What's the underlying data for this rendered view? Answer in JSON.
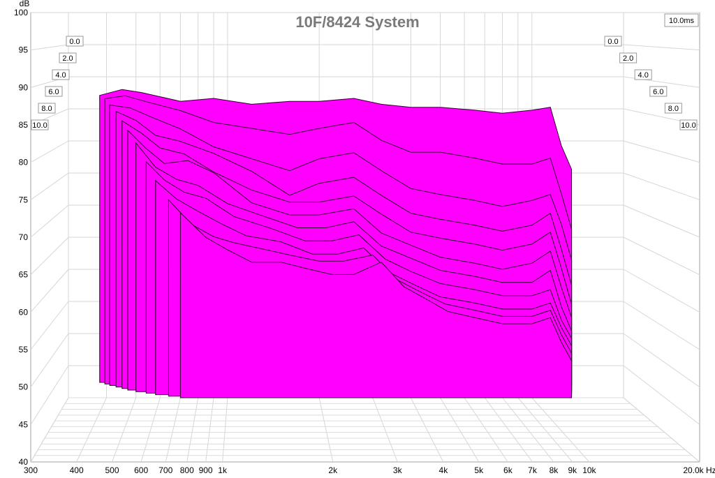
{
  "chart_data": {
    "type": "area",
    "subtype": "waterfall (cumulative spectral decay)",
    "title": "10F/8424 System",
    "ylabel": "dB",
    "xunit": "Hz",
    "time_window_label": "10.0ms",
    "x_scale": "log",
    "xlim": [
      300,
      20000
    ],
    "ylim": [
      40,
      100
    ],
    "y_ticks": [
      "100",
      "95",
      "90",
      "85",
      "80",
      "75",
      "70",
      "65",
      "60",
      "55",
      "50",
      "45",
      "40"
    ],
    "x_ticks": [
      {
        "value": 300,
        "label": "300"
      },
      {
        "value": 400,
        "label": "400"
      },
      {
        "value": 500,
        "label": "500"
      },
      {
        "value": 600,
        "label": "600"
      },
      {
        "value": 700,
        "label": "700"
      },
      {
        "value": 800,
        "label": "800"
      },
      {
        "value": 900,
        "label": "900"
      },
      {
        "value": 1000,
        "label": "1k"
      },
      {
        "value": 2000,
        "label": "2k"
      },
      {
        "value": 3000,
        "label": "3k"
      },
      {
        "value": 4000,
        "label": "4k"
      },
      {
        "value": 5000,
        "label": "5k"
      },
      {
        "value": 6000,
        "label": "6k"
      },
      {
        "value": 7000,
        "label": "7k"
      },
      {
        "value": 8000,
        "label": "8k"
      },
      {
        "value": 9000,
        "label": "9k"
      },
      {
        "value": 10000,
        "label": "10k"
      },
      {
        "value": 20000,
        "label": "20.0k Hz"
      }
    ],
    "time_labels": [
      "0.0",
      "2.0",
      "4.0",
      "6.0",
      "8.0",
      "10.0"
    ],
    "fill_color": "#ff00ff",
    "edge_color": "#300030",
    "grid": true,
    "series": [
      {
        "time_ms": 0.0,
        "x": [
          380,
          450,
          520,
          700,
          900,
          1200,
          1600,
          2000,
          2600,
          3200,
          4000,
          5000,
          6500,
          8000,
          10000,
          11500,
          12500,
          13500
        ],
        "values": [
          88.5,
          89.5,
          89,
          87.5,
          88,
          87,
          87.5,
          87.5,
          88,
          87,
          86.5,
          86.5,
          86,
          85.5,
          86,
          86.5,
          80,
          76
        ]
      },
      {
        "time_ms": 1.0,
        "x": [
          395,
          460,
          540,
          700,
          900,
          1200,
          1600,
          2000,
          2600,
          3200,
          4000,
          5000,
          6500,
          8000,
          10000,
          11500,
          12500,
          13500
        ],
        "values": [
          88,
          88.5,
          87.5,
          86,
          84,
          83,
          82,
          83,
          84,
          81,
          79,
          79,
          78,
          77,
          77,
          78,
          72,
          66
        ]
      },
      {
        "time_ms": 2.0,
        "x": [
          410,
          480,
          560,
          700,
          900,
          1200,
          1600,
          2000,
          2600,
          3200,
          4000,
          5000,
          6500,
          8000,
          10000,
          11500,
          12500,
          13500
        ],
        "values": [
          87,
          86.5,
          85,
          83,
          80,
          78,
          76,
          78,
          79,
          76,
          73,
          72,
          71,
          70,
          71,
          72,
          67,
          61
        ]
      },
      {
        "time_ms": 3.0,
        "x": [
          430,
          500,
          580,
          700,
          900,
          1200,
          1600,
          2000,
          2600,
          3200,
          4000,
          5000,
          6500,
          8000,
          10000,
          11500,
          12500,
          13500
        ],
        "values": [
          86,
          84.5,
          82,
          81,
          79,
          76,
          72,
          74,
          75,
          72,
          69,
          68,
          67,
          66,
          67,
          69,
          63,
          57
        ]
      },
      {
        "time_ms": 4.0,
        "x": [
          450,
          520,
          600,
          720,
          900,
          1200,
          1600,
          2000,
          2600,
          3200,
          4000,
          5000,
          6500,
          8000,
          10000,
          11500,
          12500,
          13500
        ],
        "values": [
          84.5,
          82.5,
          80,
          79,
          76,
          73,
          71,
          71,
          72,
          69,
          66,
          65,
          64,
          63,
          64,
          66,
          60,
          54
        ]
      },
      {
        "time_ms": 5.0,
        "x": [
          470,
          540,
          620,
          740,
          900,
          1200,
          1600,
          2000,
          2600,
          3200,
          4000,
          5000,
          6500,
          8000,
          10000,
          11500,
          12500,
          13500
        ],
        "values": [
          83,
          80,
          77.5,
          78,
          76,
          71,
          69,
          69,
          70,
          66,
          64,
          62,
          61,
          60,
          61,
          63,
          57,
          52
        ]
      },
      {
        "time_ms": 6.0,
        "x": [
          500,
          580,
          680,
          800,
          1000,
          1300,
          1700,
          2100,
          2600,
          3200,
          4000,
          5000,
          6500,
          8000,
          10000,
          11500,
          12500,
          13500
        ],
        "values": [
          81,
          77,
          75,
          74,
          71,
          69,
          67,
          67,
          68,
          64,
          62,
          60,
          59,
          58,
          58,
          60,
          54,
          50
        ]
      },
      {
        "time_ms": 7.0,
        "x": [
          540,
          620,
          720,
          850,
          1050,
          1400,
          1800,
          2200,
          2700,
          3300,
          4000,
          5000,
          6500,
          8000,
          10000,
          11500,
          12500,
          13500
        ],
        "values": [
          78,
          75,
          73,
          72,
          69,
          67,
          65,
          65,
          66,
          62,
          60,
          58,
          57,
          56,
          56,
          57,
          52,
          49
        ]
      },
      {
        "time_ms": 8.0,
        "x": [
          580,
          680,
          800,
          950,
          1150,
          1500,
          1900,
          2300,
          2800,
          3400,
          4100,
          5000,
          6500,
          8000,
          10000,
          11500,
          12500,
          13500
        ],
        "values": [
          75,
          72,
          70,
          68,
          66,
          65,
          63,
          63,
          64,
          60,
          58,
          56,
          55,
          54,
          54,
          55,
          51,
          48
        ]
      },
      {
        "time_ms": 9.0,
        "x": [
          640,
          760,
          900,
          1050,
          1300,
          1600,
          2000,
          2400,
          3000,
          3600,
          4300,
          5200,
          6500,
          8000,
          10000,
          11500,
          12500,
          13500
        ],
        "values": [
          72,
          68,
          66,
          65,
          64,
          63,
          62,
          62,
          63,
          59,
          57,
          55,
          54,
          53,
          53,
          54,
          50,
          47
        ]
      },
      {
        "time_ms": 10.0,
        "x": [
          700,
          850,
          1000,
          1200,
          1500,
          1800,
          2200,
          2600,
          3200,
          3800,
          4500,
          5300,
          6500,
          8000,
          10000,
          11500,
          12500,
          13500
        ],
        "values": [
          70,
          66,
          64,
          62,
          62,
          61,
          60,
          60,
          62,
          58,
          56,
          54,
          53,
          52,
          52,
          53,
          49,
          46
        ]
      }
    ]
  }
}
